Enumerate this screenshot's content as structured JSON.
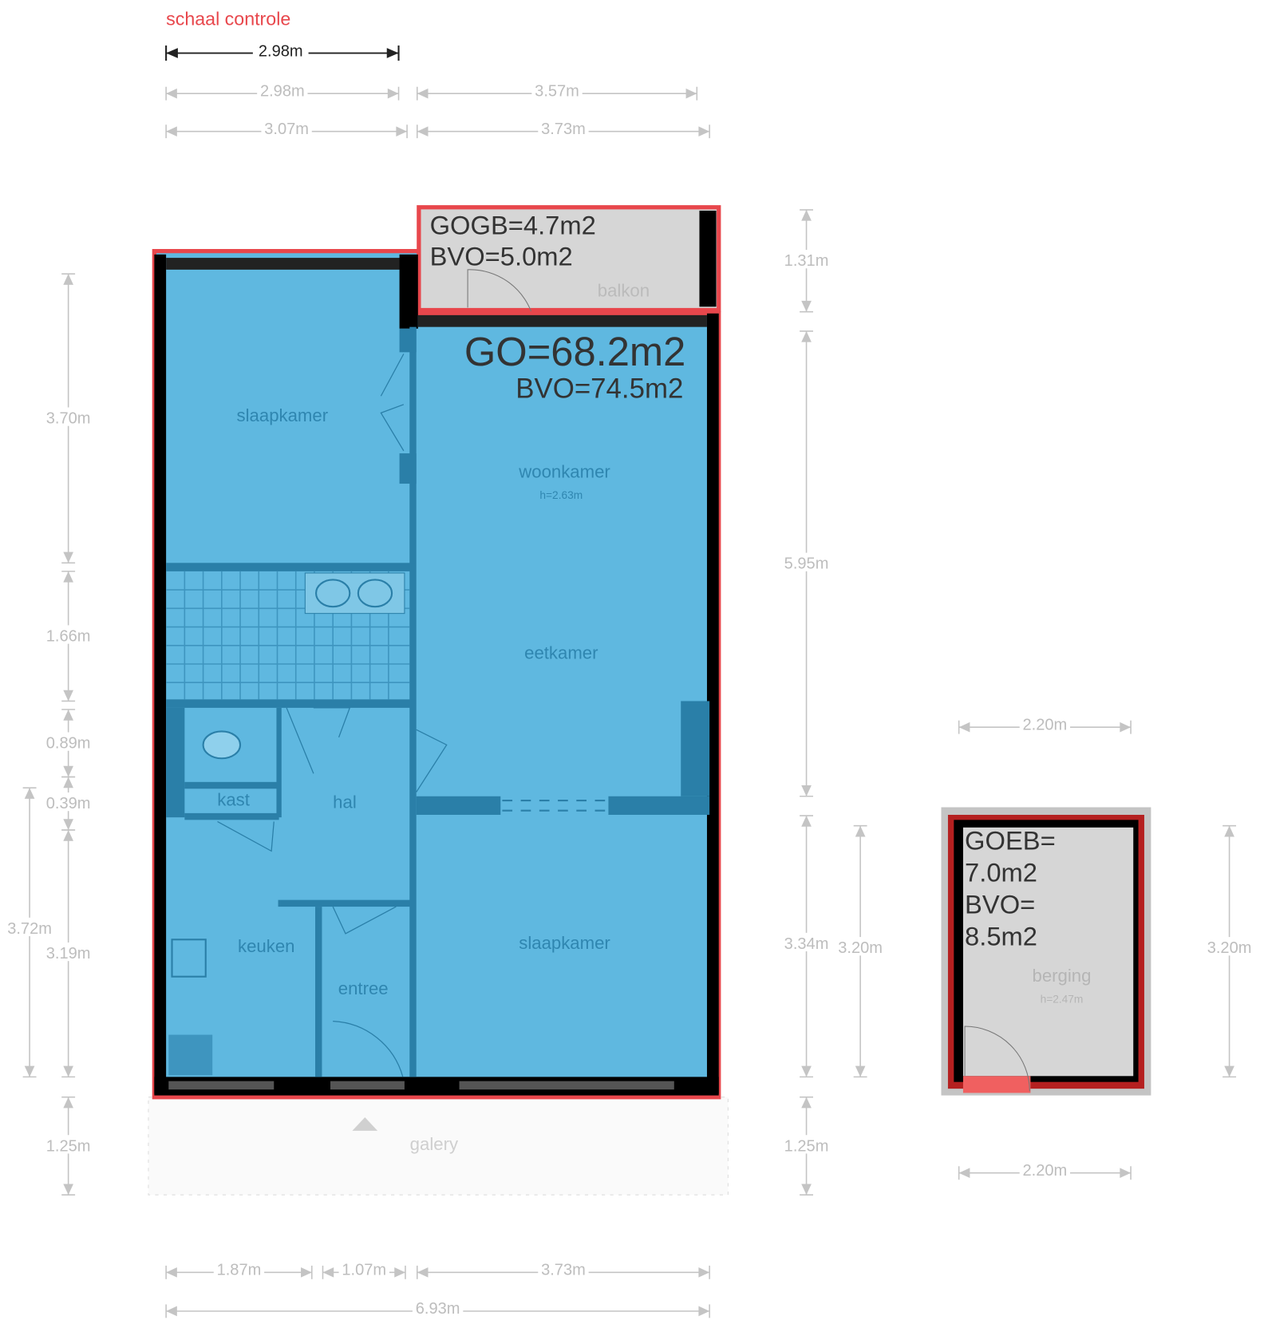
{
  "scale_check": {
    "title": "schaal controle",
    "length": "2.98m",
    "color": "#e8474c"
  },
  "colors": {
    "room_fill": "#5fb8e0",
    "inner_wall": "#2a7fa8",
    "outer_wall": "#000000",
    "outline": "#e8474c",
    "outdoor_fill": "#d6d6d6"
  },
  "rooms": {
    "slaapkamer_1": "slaapkamer",
    "woonkamer": "woonkamer",
    "woonkamer_height": "h=2.63m",
    "eetkamer": "eetkamer",
    "kast": "kast",
    "hal": "hal",
    "keuken": "keuken",
    "entree": "entree",
    "slaapkamer_2": "slaapkamer",
    "galery": "galery",
    "balkon": "balkon",
    "berging": "berging",
    "berging_height": "h=2.47m"
  },
  "areas": {
    "go": "GO=68.2m2",
    "bvo_main": "BVO=74.5m2",
    "gogb": "GOGB=4.7m2",
    "bvo_balkon": "BVO=5.0m2",
    "goeb_1": "GOEB=",
    "goeb_2": "7.0m2",
    "bvo_berging_1": "BVO=",
    "bvo_berging_2": "8.5m2"
  },
  "dimensions": {
    "top_1a": "2.98m",
    "top_1b": "3.57m",
    "top_2a": "3.07m",
    "top_2b": "3.73m",
    "left_1": "3.70m",
    "left_2": "1.66m",
    "left_3": "0.89m",
    "left_4": "0.39m",
    "left_5": "3.19m",
    "left_6": "1.25m",
    "left_outer": "3.72m",
    "right_1": "1.31m",
    "right_2": "5.95m",
    "right_3": "3.34m",
    "right_4": "1.25m",
    "right_inner": "3.20m",
    "berging_top": "2.20m",
    "berging_bottom": "2.20m",
    "berging_side": "3.20m",
    "bottom_1a": "1.87m",
    "bottom_1b": "1.07m",
    "bottom_1c": "3.73m",
    "bottom_total": "6.93m"
  }
}
